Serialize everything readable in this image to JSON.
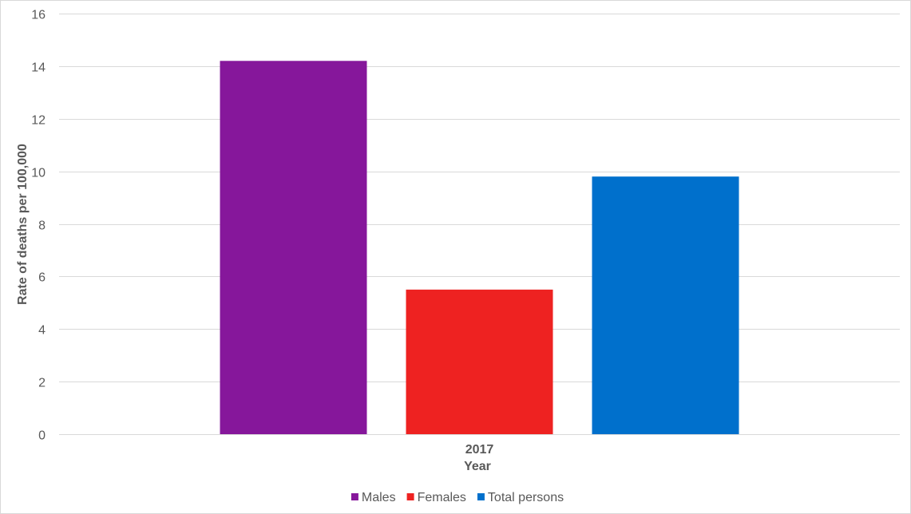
{
  "chart_data": {
    "type": "bar",
    "categories": [
      "2017"
    ],
    "series": [
      {
        "name": "Males",
        "values": [
          14.2
        ],
        "color": "#86179b"
      },
      {
        "name": "Females",
        "values": [
          5.5
        ],
        "color": "#ee2221"
      },
      {
        "name": "Total persons",
        "values": [
          9.8
        ],
        "color": "#0070cc"
      }
    ],
    "xlabel": "Year",
    "ylabel": "Rate of deaths per 100,000",
    "ylim": [
      0,
      16
    ],
    "yticks": [
      "0",
      "2",
      "4",
      "6",
      "8",
      "10",
      "12",
      "14",
      "16"
    ],
    "grid": true,
    "legend_position": "bottom"
  }
}
